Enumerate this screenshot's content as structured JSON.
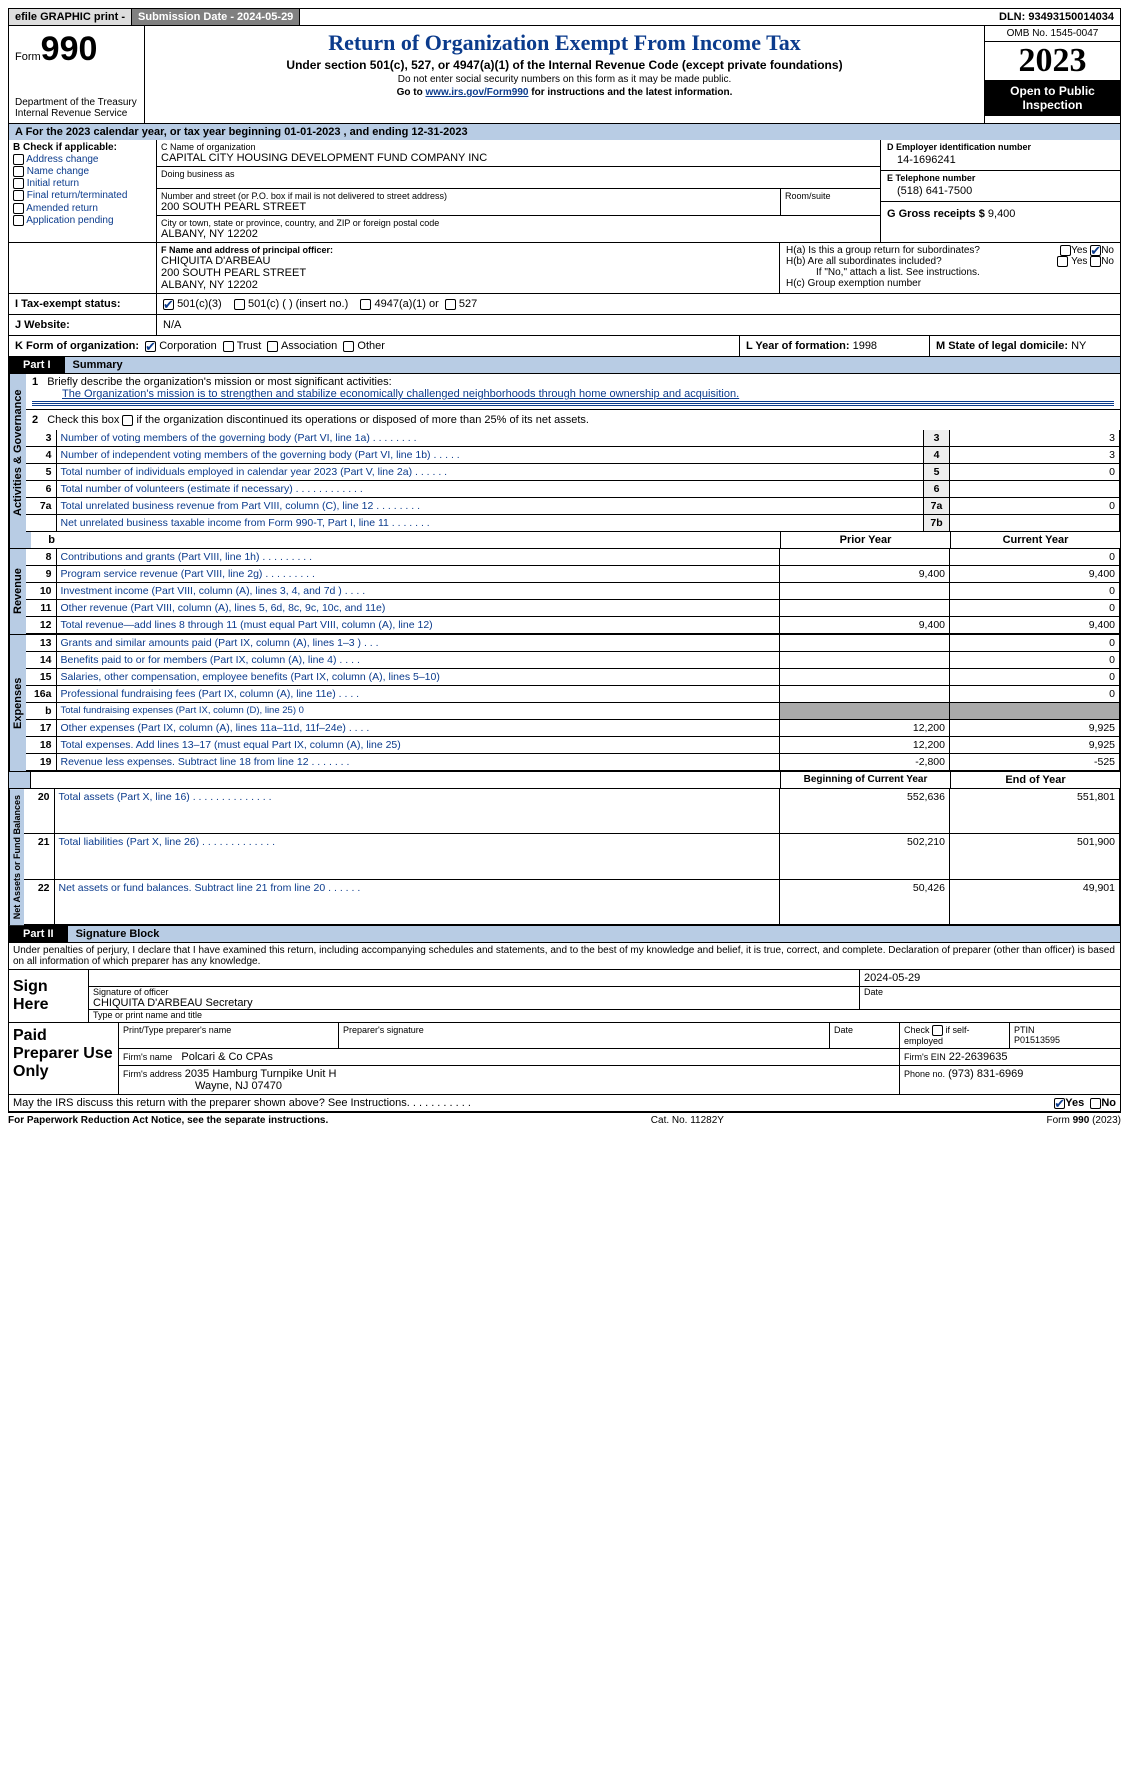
{
  "topbar": {
    "efile": "efile GRAPHIC print -",
    "submission": "Submission Date - 2024-05-29",
    "dln": "DLN: 93493150014034"
  },
  "header": {
    "form_prefix": "Form",
    "form_no": "990",
    "dept": "Department of the Treasury Internal Revenue Service",
    "title": "Return of Organization Exempt From Income Tax",
    "subtitle": "Under section 501(c), 527, or 4947(a)(1) of the Internal Revenue Code (except private foundations)",
    "instr1": "Do not enter social security numbers on this form as it may be made public.",
    "instr2_pre": "Go to ",
    "instr2_link": "www.irs.gov/Form990",
    "instr2_post": " for instructions and the latest information.",
    "omb": "OMB No. 1545-0047",
    "year": "2023",
    "pub": "Open to Public Inspection"
  },
  "line_a": "A For the 2023 calendar year, or tax year beginning 01-01-2023   , and ending 12-31-2023",
  "box_b": {
    "title": "B Check if applicable:",
    "items": [
      "Address change",
      "Name change",
      "Initial return",
      "Final return/terminated",
      "Amended return",
      "Application pending"
    ]
  },
  "box_c": {
    "lbl": "C Name of organization",
    "name": "CAPITAL CITY HOUSING DEVELOPMENT FUND COMPANY INC",
    "dba_lbl": "Doing business as",
    "addr_lbl": "Number and street (or P.O. box if mail is not delivered to street address)",
    "room_lbl": "Room/suite",
    "addr": "200 SOUTH PEARL STREET",
    "city_lbl": "City or town, state or province, country, and ZIP or foreign postal code",
    "city": "ALBANY, NY  12202"
  },
  "box_d": {
    "lbl": "D Employer identification number",
    "val": "14-1696241"
  },
  "box_e": {
    "lbl": "E Telephone number",
    "val": "(518) 641-7500"
  },
  "box_g": {
    "lbl": "G Gross receipts $",
    "val": "9,400"
  },
  "box_f": {
    "lbl": "F  Name and address of principal officer:",
    "name": "CHIQUITA D'ARBEAU",
    "addr1": "200 SOUTH PEARL STREET",
    "addr2": "ALBANY, NY  12202"
  },
  "box_h": {
    "ha": "H(a)  Is this a group return for subordinates?",
    "hb": "H(b)  Are all subordinates included?",
    "hb_note": "If \"No,\" attach a list. See instructions.",
    "hc": "H(c)  Group exemption number",
    "yes": "Yes",
    "no": "No"
  },
  "line_i": {
    "lbl": "I  Tax-exempt status:",
    "o1": "501(c)(3)",
    "o2": "501(c) (  ) (insert no.)",
    "o3": "4947(a)(1) or",
    "o4": "527"
  },
  "line_j": {
    "lbl": "J  Website:",
    "val": "N/A"
  },
  "line_k": {
    "lbl": "K Form of organization:",
    "o1": "Corporation",
    "o2": "Trust",
    "o3": "Association",
    "o4": "Other"
  },
  "line_l": {
    "lbl": "L Year of formation:",
    "val": "1998"
  },
  "line_m": {
    "lbl": "M State of legal domicile:",
    "val": "NY"
  },
  "part1": {
    "tab": "Part I",
    "title": "Summary"
  },
  "sections": {
    "ag": "Activities & Governance",
    "rev": "Revenue",
    "exp": "Expenses",
    "nab": "Net Assets or Fund Balances"
  },
  "q1": {
    "lbl": "1",
    "text": "Briefly describe the organization's mission or most significant activities:",
    "ans": "The Organization's mission is to strengthen and stabilize economically challenged neighborhoods through home ownership and acquisition."
  },
  "q2": "Check this box          if the organization discontinued its operations or disposed of more than 25% of its net assets.",
  "gov_rows": [
    {
      "n": "3",
      "t": "Number of voting members of the governing body (Part VI, line 1a)   .    .    .    .    .    .    .    .",
      "c": "3",
      "v": "3"
    },
    {
      "n": "4",
      "t": "Number of independent voting members of the governing body (Part VI, line 1b)    .    .    .    .    .",
      "c": "4",
      "v": "3"
    },
    {
      "n": "5",
      "t": "Total number of individuals employed in calendar year 2023 (Part V, line 2a)    .    .    .    .    .    .",
      "c": "5",
      "v": "0"
    },
    {
      "n": "6",
      "t": "Total number of volunteers (estimate if necessary)    .    .    .    .    .    .    .    .    .    .    .    .",
      "c": "6",
      "v": ""
    },
    {
      "n": "7a",
      "t": "Total unrelated business revenue from Part VIII, column (C), line 12    .    .    .    .    .    .    .    .",
      "c": "7a",
      "v": "0"
    },
    {
      "n": "",
      "t": "Net unrelated business taxable income from Form 990-T, Part I, line 11    .    .    .    .    .    .    .",
      "c": "7b",
      "v": ""
    }
  ],
  "cols": {
    "b": "b",
    "py": "Prior Year",
    "cy": "Current Year",
    "bcy": "Beginning of Current Year",
    "eoy": "End of Year"
  },
  "rev_rows": [
    {
      "n": "8",
      "t": "Contributions and grants (Part VIII, line 1h)    .    .    .    .    .    .    .    .    .",
      "py": "",
      "cy": "0"
    },
    {
      "n": "9",
      "t": "Program service revenue (Part VIII, line 2g)    .    .    .    .    .    .    .    .    .",
      "py": "9,400",
      "cy": "9,400"
    },
    {
      "n": "10",
      "t": "Investment income (Part VIII, column (A), lines 3, 4, and 7d )    .    .    .    .",
      "py": "",
      "cy": "0"
    },
    {
      "n": "11",
      "t": "Other revenue (Part VIII, column (A), lines 5, 6d, 8c, 9c, 10c, and 11e)",
      "py": "",
      "cy": "0"
    },
    {
      "n": "12",
      "t": "Total revenue—add lines 8 through 11 (must equal Part VIII, column (A), line 12)",
      "py": "9,400",
      "cy": "9,400"
    }
  ],
  "exp_rows": [
    {
      "n": "13",
      "t": "Grants and similar amounts paid (Part IX, column (A), lines 1–3 )    .    .    .",
      "py": "",
      "cy": "0"
    },
    {
      "n": "14",
      "t": "Benefits paid to or for members (Part IX, column (A), line 4)    .    .    .    .",
      "py": "",
      "cy": "0"
    },
    {
      "n": "15",
      "t": "Salaries, other compensation, employee benefits (Part IX, column (A), lines 5–10)",
      "py": "",
      "cy": "0"
    },
    {
      "n": "16a",
      "t": "Professional fundraising fees (Part IX, column (A), line 11e)    .    .    .    .",
      "py": "",
      "cy": "0"
    },
    {
      "n": "b",
      "t": "Total fundraising expenses (Part IX, column (D), line 25) 0",
      "py": "GRAY",
      "cy": "GRAY",
      "sm": true
    },
    {
      "n": "17",
      "t": "Other expenses (Part IX, column (A), lines 11a–11d, 11f–24e)    .    .    .    .",
      "py": "12,200",
      "cy": "9,925"
    },
    {
      "n": "18",
      "t": "Total expenses. Add lines 13–17 (must equal Part IX, column (A), line 25)",
      "py": "12,200",
      "cy": "9,925"
    },
    {
      "n": "19",
      "t": "Revenue less expenses. Subtract line 18 from line 12    .    .    .    .    .    .    .",
      "py": "-2,800",
      "cy": "-525"
    }
  ],
  "nab_rows": [
    {
      "n": "20",
      "t": "Total assets (Part X, line 16)    .    .    .    .    .    .    .    .    .    .    .    .    .    .",
      "py": "552,636",
      "cy": "551,801"
    },
    {
      "n": "21",
      "t": "Total liabilities (Part X, line 26)    .    .    .    .    .    .    .    .    .    .    .    .    .",
      "py": "502,210",
      "cy": "501,900"
    },
    {
      "n": "22",
      "t": "Net assets or fund balances. Subtract line 21 from line 20    .    .    .    .    .    .",
      "py": "50,426",
      "cy": "49,901"
    }
  ],
  "part2": {
    "tab": "Part II",
    "title": "Signature Block"
  },
  "penalty": "Under penalties of perjury, I declare that I have examined this return, including accompanying schedules and statements, and to the best of my knowledge and belief, it is true, correct, and complete. Declaration of preparer (other than officer) is based on all information of which preparer has any knowledge.",
  "sign": {
    "here": "Sign Here",
    "date": "2024-05-29",
    "sig_lbl": "Signature of officer",
    "name": "CHIQUITA D'ARBEAU  Secretary",
    "type_lbl": "Type or print name and title",
    "date_lbl": "Date"
  },
  "prep": {
    "title": "Paid Preparer Use Only",
    "h1": "Print/Type preparer's name",
    "h2": "Preparer's signature",
    "h3": "Date",
    "h4_pre": "Check",
    "h4_post": "if self-employed",
    "ptin_lbl": "PTIN",
    "ptin": "P01513595",
    "firm_lbl": "Firm's name",
    "firm": "Polcari & Co CPAs",
    "ein_lbl": "Firm's EIN",
    "ein": "22-2639635",
    "addr_lbl": "Firm's address",
    "addr1": "2035 Hamburg Turnpike Unit H",
    "addr2": "Wayne, NJ  07470",
    "phone_lbl": "Phone no.",
    "phone": "(973) 831-6969"
  },
  "discuss": {
    "q": "May the IRS discuss this return with the preparer shown above? See Instructions.    .    .    .    .    .    .    .    .    .    .",
    "yes": "Yes",
    "no": "No"
  },
  "footer": {
    "l": "For Paperwork Reduction Act Notice, see the separate instructions.",
    "c": "Cat. No. 11282Y",
    "r_pre": "Form ",
    "r_form": "990",
    "r_post": " (2023)"
  }
}
